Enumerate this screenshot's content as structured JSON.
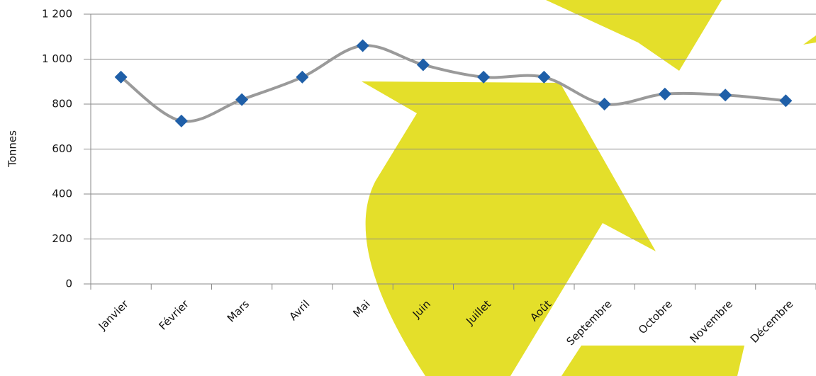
{
  "chart_data": {
    "type": "line",
    "y_label": "Tonnes",
    "categories": [
      "Janvier",
      "Février",
      "Mars",
      "Avril",
      "Mai",
      "Juin",
      "Juillet",
      "Août",
      "Septembre",
      "Octobre",
      "Novembre",
      "Décembre"
    ],
    "values": [
      920,
      725,
      820,
      920,
      1060,
      975,
      920,
      920,
      800,
      845,
      840,
      815
    ],
    "line_color": "#9a9a9a",
    "marker_color": "#1f5fa8",
    "ylim": [
      0,
      1200
    ],
    "yticks": [
      0,
      200,
      400,
      600,
      800,
      {
        "value": 1000,
        "label": "1 000"
      },
      {
        "value": 1200,
        "label": "1 200"
      }
    ],
    "grid": true
  }
}
